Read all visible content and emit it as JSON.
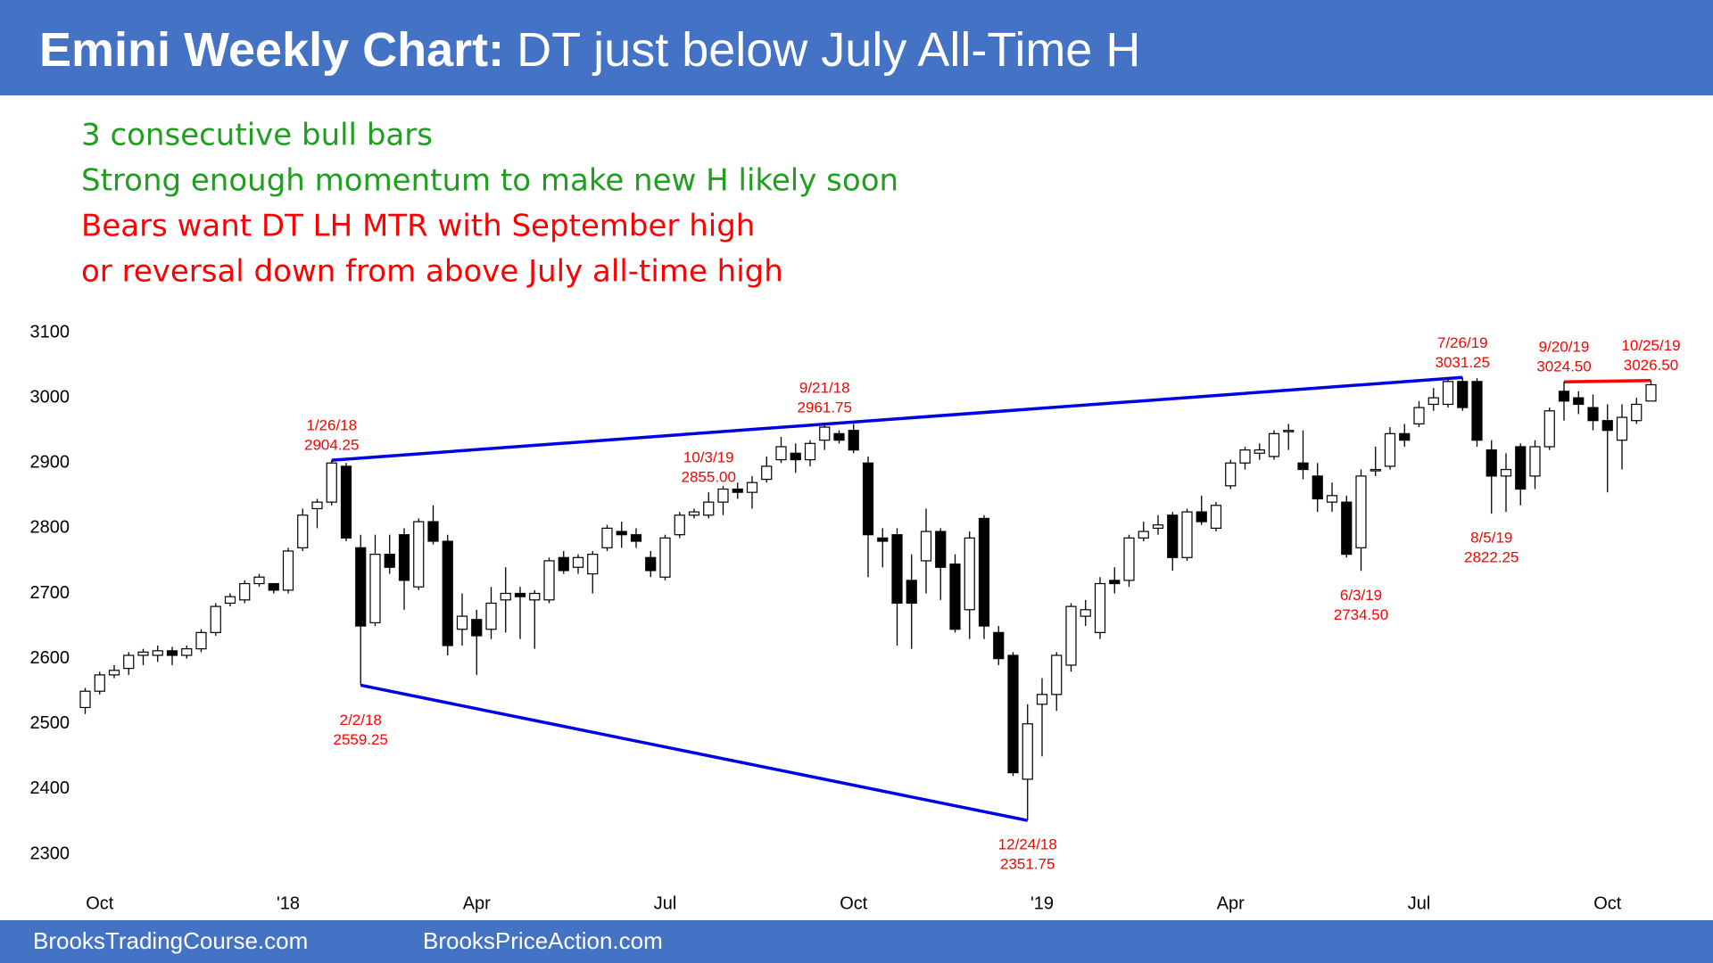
{
  "chart_data": {
    "type": "candlestick",
    "title": "Emini Weekly Chart:",
    "subtitle": "DT just below July All-Time H",
    "notes": [
      {
        "text": "3 consecutive bull bars",
        "color": "#1f9e1f"
      },
      {
        "text": "Strong enough momentum to make new H likely soon",
        "color": "#1f9e1f"
      },
      {
        "text": "Bears want DT LH MTR with September high",
        "color": "#ff0000"
      },
      {
        "text": "or reversal down from above July all-time high",
        "color": "#ff0000"
      }
    ],
    "footer": [
      "BrooksTradingCourse.com",
      "BrooksPriceAction.com"
    ],
    "open": [
      2525,
      2550,
      2575,
      2585,
      2605,
      2605,
      2612,
      2605,
      2615,
      2640,
      2685,
      2690,
      2715,
      2715,
      2705,
      2770,
      2830,
      2840,
      2895,
      2770,
      2655,
      2760,
      2790,
      2710,
      2810,
      2780,
      2645,
      2660,
      2645,
      2690,
      2700,
      2690,
      2690,
      2755,
      2740,
      2730,
      2770,
      2795,
      2790,
      2755,
      2725,
      2790,
      2820,
      2820,
      2840,
      2860,
      2855,
      2875,
      2905,
      2915,
      2905,
      2935,
      2945,
      2950,
      2900,
      2785,
      2790,
      2720,
      2750,
      2795,
      2745,
      2675,
      2815,
      2640,
      2605,
      2415,
      2530,
      2545,
      2590,
      2665,
      2640,
      2720,
      2720,
      2785,
      2800,
      2820,
      2755,
      2825,
      2800,
      2865,
      2900,
      2915,
      2910,
      2950,
      2900,
      2880,
      2840,
      2840,
      2770,
      2890,
      2895,
      2945,
      2960,
      2990,
      2990,
      3025,
      3025,
      2920,
      2880,
      2925,
      2880,
      2925,
      3010,
      3000,
      2985,
      2965,
      2935,
      2965,
      2995
    ],
    "high": [
      2555,
      2580,
      2590,
      2610,
      2615,
      2620,
      2618,
      2620,
      2645,
      2685,
      2700,
      2720,
      2730,
      2715,
      2770,
      2830,
      2845,
      2904.25,
      2900,
      2790,
      2790,
      2790,
      2800,
      2815,
      2835,
      2790,
      2700,
      2675,
      2710,
      2740,
      2710,
      2705,
      2755,
      2765,
      2760,
      2765,
      2805,
      2810,
      2800,
      2765,
      2790,
      2825,
      2830,
      2855,
      2865,
      2870,
      2880,
      2910,
      2940,
      2930,
      2935,
      2961.75,
      2950,
      2960,
      2910,
      2800,
      2800,
      2760,
      2830,
      2800,
      2760,
      2795,
      2820,
      2650,
      2610,
      2530,
      2570,
      2610,
      2685,
      2690,
      2725,
      2740,
      2790,
      2810,
      2820,
      2825,
      2830,
      2850,
      2840,
      2905,
      2925,
      2930,
      2950,
      2960,
      2950,
      2900,
      2870,
      2850,
      2890,
      2925,
      2955,
      2960,
      2995,
      3015,
      3030,
      3031.25,
      3030,
      2935,
      2915,
      2930,
      2935,
      2985,
      3024.5,
      3010,
      3005,
      2990,
      2990,
      3000,
      3026.5
    ],
    "low": [
      2515,
      2545,
      2570,
      2575,
      2590,
      2595,
      2590,
      2600,
      2610,
      2635,
      2680,
      2685,
      2710,
      2700,
      2700,
      2765,
      2800,
      2835,
      2780,
      2559.25,
      2650,
      2730,
      2675,
      2705,
      2775,
      2605,
      2620,
      2575,
      2630,
      2640,
      2630,
      2615,
      2685,
      2730,
      2730,
      2700,
      2765,
      2770,
      2770,
      2725,
      2720,
      2785,
      2815,
      2815,
      2820,
      2845,
      2830,
      2870,
      2900,
      2885,
      2895,
      2920,
      2930,
      2915,
      2725,
      2740,
      2620,
      2615,
      2700,
      2690,
      2640,
      2630,
      2630,
      2590,
      2420,
      2351.75,
      2450,
      2520,
      2580,
      2650,
      2630,
      2700,
      2710,
      2780,
      2790,
      2735,
      2750,
      2805,
      2795,
      2860,
      2890,
      2905,
      2905,
      2920,
      2875,
      2825,
      2825,
      2755,
      2734.5,
      2880,
      2890,
      2925,
      2955,
      2980,
      2985,
      2980,
      2925,
      2822.25,
      2825,
      2835,
      2860,
      2920,
      2965,
      2975,
      2950,
      2855,
      2890,
      2960,
      2995
    ],
    "close": [
      2550,
      2575,
      2582,
      2605,
      2610,
      2612,
      2605,
      2615,
      2640,
      2680,
      2695,
      2715,
      2725,
      2705,
      2765,
      2820,
      2840,
      2900,
      2785,
      2650,
      2760,
      2740,
      2720,
      2810,
      2780,
      2620,
      2665,
      2635,
      2685,
      2700,
      2695,
      2700,
      2750,
      2735,
      2755,
      2760,
      2800,
      2790,
      2780,
      2735,
      2785,
      2820,
      2825,
      2840,
      2860,
      2855,
      2870,
      2895,
      2925,
      2905,
      2930,
      2955,
      2935,
      2920,
      2790,
      2780,
      2685,
      2685,
      2795,
      2740,
      2645,
      2785,
      2650,
      2600,
      2425,
      2500,
      2545,
      2605,
      2680,
      2675,
      2715,
      2715,
      2785,
      2795,
      2805,
      2755,
      2825,
      2810,
      2835,
      2900,
      2920,
      2920,
      2945,
      2950,
      2890,
      2845,
      2850,
      2760,
      2880,
      2890,
      2945,
      2935,
      2985,
      3000,
      3025,
      2985,
      2935,
      2880,
      2890,
      2860,
      2925,
      2980,
      2995,
      2990,
      2965,
      2950,
      2970,
      2990,
      3020
    ],
    "annotations": [
      {
        "date": "1/26/18",
        "price": 2904.25,
        "price_label": "2904.25"
      },
      {
        "date": "2/2/18",
        "price": 2559.25,
        "price_label": "2559.25"
      },
      {
        "date": "9/21/18",
        "price": 2961.75,
        "price_label": "2961.75"
      },
      {
        "date": "12/24/18",
        "price": 2351.75,
        "price_label": "2351.75"
      },
      {
        "date": "6/3/19",
        "price": 2734.5,
        "price_label": "2734.50"
      },
      {
        "date": "7/26/19",
        "price": 3031.25,
        "price_label": "3031.25"
      },
      {
        "date": "8/5/19",
        "price": 2822.25,
        "price_label": "2822.25"
      },
      {
        "date": "9/20/19",
        "price": 3024.5,
        "price_label": "3024.50"
      },
      {
        "date": "10/3/19",
        "price": 2855,
        "price_label": "2855.00"
      },
      {
        "date": "10/25/19",
        "price": 3026.5,
        "price_label": "3026.50"
      }
    ],
    "ylim": [
      2300,
      3100
    ],
    "yticks": [
      2300,
      2400,
      2500,
      2600,
      2700,
      2800,
      2900,
      3000,
      3100
    ],
    "xticks": [
      {
        "value": 1,
        "label": "Oct"
      },
      {
        "value": 14,
        "label": "'18"
      },
      {
        "value": 27,
        "label": "Apr"
      },
      {
        "value": 40,
        "label": "Jul"
      },
      {
        "value": 53,
        "label": "Oct"
      },
      {
        "value": 66,
        "label": "'19"
      },
      {
        "value": 79,
        "label": "Apr"
      },
      {
        "value": 92,
        "label": "Jul"
      },
      {
        "value": 105,
        "label": "Oct"
      }
    ],
    "grid": false,
    "up_color": "#ffffff",
    "down_color": "#000000"
  }
}
